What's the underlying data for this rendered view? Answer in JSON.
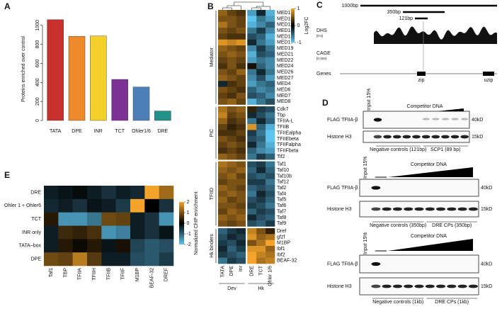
{
  "panel_labels": [
    "A",
    "B",
    "C",
    "D",
    "E"
  ],
  "chart_data": [
    {
      "type": "bar",
      "y_label": "Proteins enriched over control",
      "categories": [
        "TATA",
        "DPE",
        "INR",
        "TCT",
        "Ohler1/6",
        "DRE"
      ],
      "values": [
        1060,
        885,
        888,
        432,
        352,
        100
      ],
      "colors": [
        "#c8302c",
        "#ee8a2b",
        "#f3d128",
        "#7b3294",
        "#4d7fb8",
        "#22918a"
      ],
      "ylim": [
        0,
        1080
      ],
      "yticks": [
        0,
        200,
        400,
        600,
        800,
        1000
      ]
    },
    {
      "type": "heatmap",
      "x_categories": [
        "TATA",
        "DPE",
        "Inr",
        "DRE",
        "TCT",
        "Ohler 1/6"
      ],
      "x_groups": [
        "Dev",
        "Hk"
      ],
      "y_groups": [
        "Mediator",
        "PIC",
        "TFIID",
        "Hk binders"
      ],
      "y_categories": [
        "MED1",
        "MED10",
        "MED11",
        "MED14",
        "MED16",
        "MED17",
        "MED19",
        "MED21",
        "MED22",
        "MED24",
        "MED26",
        "MED27",
        "MED4",
        "MED6",
        "MED7",
        "MED8",
        "Cdk7",
        "Tbp",
        "TFIIA-L",
        "TFIIB",
        "TFIIEalpha",
        "TFIIEbeta",
        "TFIIFalpha",
        "TFIIFbeta",
        "Tif2",
        "Taf1",
        "Taf10",
        "Taf10b",
        "Taf12",
        "Taf2",
        "Taf4",
        "Taf5",
        "Taf6",
        "Taf7",
        "Taf8",
        "Taf9",
        "Dref",
        "gfzf",
        "M1BP",
        "Ibf1",
        "Ibf2",
        "BEAF-32"
      ],
      "values": [
        [
          0.6,
          0.4,
          0.3,
          -0.8,
          -0.2,
          -0.9
        ],
        [
          0.5,
          0.5,
          0.4,
          -1,
          -0.6,
          -0.8
        ],
        [
          0.7,
          0.5,
          0.4,
          -0.9,
          -0.7,
          -0.5
        ],
        [
          0.5,
          0.4,
          0.5,
          -0.6,
          -0.3,
          -0.7
        ],
        [
          0.4,
          0.3,
          0.3,
          -0.4,
          -0.5,
          -0.9
        ],
        [
          0.9,
          0.8,
          0.9,
          -0.2,
          -0.6,
          -0.8
        ],
        [
          0.6,
          0.5,
          0.4,
          -0.7,
          -0.3,
          -0.6
        ],
        [
          0.5,
          0.6,
          0.5,
          -0.9,
          -0.4,
          -0.5
        ],
        [
          0.4,
          0.5,
          0.4,
          -0.8,
          -0.6,
          -0.7
        ],
        [
          0.3,
          0.5,
          0.3,
          0.1,
          -0.5,
          -0.7
        ],
        [
          0.5,
          0.4,
          0.6,
          -0.6,
          -0.2,
          -0.6
        ],
        [
          0.6,
          0.5,
          0.4,
          -0.7,
          -0.4,
          -0.8
        ],
        [
          -0.2,
          0.3,
          0.4,
          -0.8,
          -0.6,
          -0.5
        ],
        [
          0.5,
          0.4,
          0.3,
          -0.5,
          -0.7,
          -0.6
        ],
        [
          0.4,
          0.3,
          0.5,
          -0.4,
          -0.5,
          -0.7
        ],
        [
          0.5,
          0.6,
          0.4,
          -0.9,
          -0.6,
          -0.4
        ],
        [
          0.7,
          0.5,
          0.6,
          0.2,
          -0.3,
          -0.4
        ],
        [
          0.8,
          0.4,
          0.5,
          -0.2,
          -0.4,
          -0.6
        ],
        [
          0.6,
          0.3,
          0.4,
          -0.6,
          -0.2,
          -0.5
        ],
        [
          0.4,
          0.2,
          0.3,
          0.9,
          -0.5,
          -0.9
        ],
        [
          0.3,
          0.3,
          0.4,
          -0.3,
          -0.6,
          -1
        ],
        [
          0.5,
          0.4,
          0.3,
          -0.4,
          -0.5,
          -1
        ],
        [
          0.4,
          0.5,
          0.4,
          -0.2,
          -0.6,
          -0.9
        ],
        [
          0.3,
          0.4,
          0.3,
          -0.5,
          -0.7,
          -0.8
        ],
        [
          0.6,
          0.5,
          0.4,
          -0.6,
          -0.3,
          -0.5
        ],
        [
          0.7,
          0.6,
          0.5,
          -0.4,
          -0.3,
          -0.6
        ],
        [
          0.6,
          0.5,
          0.6,
          -0.5,
          -0.2,
          -0.5
        ],
        [
          0.5,
          0.6,
          0.4,
          -0.4,
          -0.5,
          -0.4
        ],
        [
          0.4,
          0.5,
          0.5,
          -0.3,
          -0.3,
          -0.6
        ],
        [
          0.6,
          0.5,
          0.4,
          -0.5,
          -0.4,
          -0.5
        ],
        [
          0.5,
          0.6,
          0.5,
          -0.6,
          -0.2,
          -0.4
        ],
        [
          0.6,
          0.4,
          0.5,
          -0.4,
          -0.3,
          -0.5
        ],
        [
          0.5,
          0.5,
          0.4,
          -0.3,
          -0.4,
          -0.6
        ],
        [
          0.4,
          0.6,
          0.5,
          -0.5,
          -0.3,
          -0.4
        ],
        [
          0.6,
          0.5,
          0.6,
          -0.2,
          -0.4,
          -0.5
        ],
        [
          0.5,
          0.4,
          0.5,
          -0.4,
          -0.5,
          -0.3
        ],
        [
          -0.5,
          -0.3,
          -0.2,
          0.8,
          0.5,
          0.2
        ],
        [
          -0.4,
          -0.2,
          -0.3,
          0.9,
          0.6,
          0.7
        ],
        [
          -0.3,
          -0.4,
          -0.2,
          0.5,
          0.7,
          1
        ],
        [
          -0.2,
          -0.5,
          -0.3,
          0.9,
          0.9,
          0.6
        ],
        [
          -0.3,
          -0.4,
          -0.5,
          1,
          0.8,
          0.7
        ],
        [
          -0.6,
          -0.3,
          -0.4,
          1,
          0.7,
          0.8
        ]
      ],
      "colors": [
        "#5ec4f0",
        "#000000",
        "#f4a42a"
      ],
      "colorbar": {
        "title": "Log2FC",
        "lim": [
          -1,
          1
        ],
        "ticks": [
          1,
          0,
          -1
        ]
      }
    },
    {
      "type": "heatmap",
      "x_categories": [
        "Taf1",
        "TBP",
        "TFIIA",
        "TFIIH",
        "TFIIB",
        "TFIIF",
        "M1BP",
        "BEAF-32",
        "DREF"
      ],
      "y_categories": [
        "DRE",
        "Ohler 1 + Ohler6",
        "TCT",
        "INR only",
        "TATA–box",
        "DPE"
      ],
      "values": [
        [
          -0.3,
          -0.2,
          -0.1,
          -0.3,
          -0.5,
          -0.3,
          -0.4,
          2,
          1.3
        ],
        [
          -0.4,
          -0.3,
          -0.5,
          -0.2,
          -0.3,
          -0.6,
          2,
          0,
          -0.5
        ],
        [
          0.3,
          -1.5,
          -1.5,
          -1.2,
          0.9,
          0.8,
          -0.3,
          -0.5,
          -1.5
        ],
        [
          -0.3,
          0.5,
          0.4,
          0.6,
          -1.5,
          -1.3,
          -0.3,
          -0.5,
          -0.2
        ],
        [
          -0.3,
          0.3,
          0.1,
          0.3,
          -0.2,
          0.2,
          -0.7,
          -0.9,
          -0.8
        ],
        [
          0.9,
          0.8,
          1.5,
          0.7,
          -0.3,
          -0.3,
          -0.8,
          -0.9,
          -0.6
        ]
      ],
      "colors": [
        "#5ec4f0",
        "#000000",
        "#f4a42a"
      ],
      "colorbar": {
        "title": "Normalized ChIP enrichment",
        "lim": [
          -2,
          2
        ],
        "ticks": [
          2,
          1,
          0,
          -1,
          -2
        ]
      }
    }
  ],
  "genome_browser": {
    "scale_labels": [
      "1000bp",
      "350bp",
      "121bp"
    ],
    "tracks": [
      {
        "name": "DHS",
        "range": "[0-4]"
      },
      {
        "name": "CAGE",
        "range": "[0-304]"
      }
    ],
    "genes_label": "Genes",
    "genes": [
      "zip",
      "uzip"
    ]
  },
  "gels": [
    {
      "competitor": "Competitor DNA",
      "input": "Input 15%",
      "blots": [
        {
          "label": "FLAG TFIIA-β",
          "size": "40kD"
        },
        {
          "label": "Histone H3",
          "size": "15kD"
        }
      ],
      "lanes": [
        "Negative controls (121bp)",
        "SCP1 (89 bp)"
      ]
    },
    {
      "competitor": "Competitor DNA",
      "input": "Input 15%",
      "blots": [
        {
          "label": "FLAG TFIIA-β",
          "size": "40kD"
        },
        {
          "label": "Histone H3",
          "size": "15kD"
        }
      ],
      "lanes": [
        "Negative controls (350bp)",
        "DRE CPs (350bp)"
      ]
    },
    {
      "competitor": "Competitor DNA",
      "input": "Input 15%",
      "blots": [
        {
          "label": "FLAG TFIIA-β",
          "size": "40kD"
        },
        {
          "label": "Histone H3",
          "size": "15kD"
        }
      ],
      "lanes": [
        "Negative controls (1kb)",
        "DRE CPs (1kb)"
      ]
    }
  ]
}
